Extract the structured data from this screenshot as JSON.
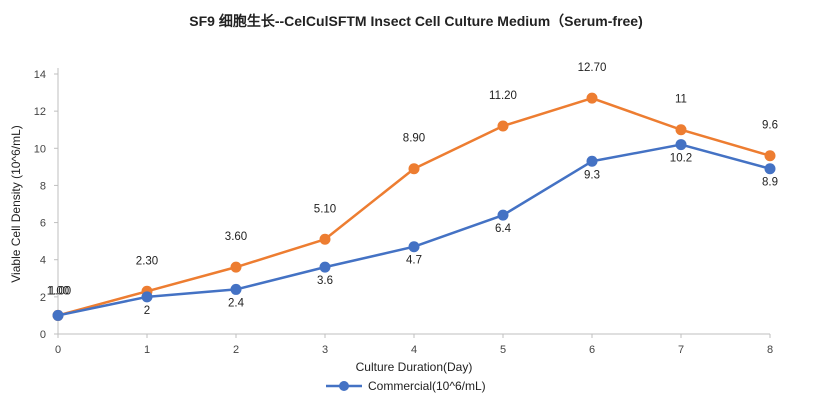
{
  "chart_data": {
    "type": "line",
    "title": "SF9 细胞生长--CelCulSFTM Insect Cell Culture Medium（Serum-free)",
    "xlabel": "Culture Duration(Day)",
    "ylabel": "Viable  Cell Density (10^6/mL)",
    "x": [
      0,
      1,
      2,
      3,
      4,
      5,
      6,
      7,
      8
    ],
    "xlim": [
      0,
      8
    ],
    "ylim": [
      0,
      14
    ],
    "yticks": [
      0,
      2,
      4,
      6,
      8,
      10,
      12,
      14
    ],
    "grid": false,
    "legend_position": "bottom",
    "series": [
      {
        "name": "Commercial(10^6/mL)",
        "color": "#4472C4",
        "values": [
          1.0,
          2.0,
          2.4,
          3.6,
          4.7,
          6.4,
          9.3,
          10.2,
          8.9
        ],
        "labels": [
          "1.00",
          "2",
          "2.4",
          "3.6",
          "4.7",
          "6.4",
          "9.3",
          "10.2",
          "8.9"
        ]
      },
      {
        "name": "",
        "color": "#ED7D31",
        "values": [
          1.0,
          2.3,
          3.6,
          5.1,
          8.9,
          11.2,
          12.7,
          11.0,
          9.6
        ],
        "labels": [
          "1.00",
          "2.30",
          "3.60",
          "5.10",
          "8.90",
          "11.20",
          "12.70",
          "11",
          "9.6"
        ]
      }
    ]
  }
}
